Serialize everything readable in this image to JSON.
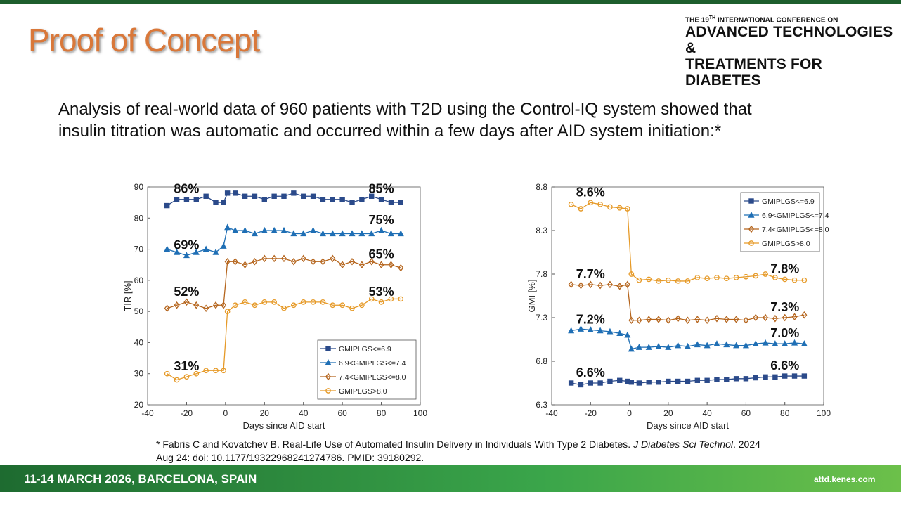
{
  "slide": {
    "title": "Proof of Concept",
    "conference": {
      "pre": "THE 19",
      "sup": "TH",
      "post": " INTERNATIONAL CONFERENCE ON",
      "line2": "ADVANCED TECHNOLOGIES &",
      "line3": "TREATMENTS FOR DIABETES"
    },
    "body": "Analysis of real-world data of 960 patients with T2D using the Control-IQ system showed that insulin titration was automatic and occurred within a few days after AID system initiation:*",
    "footnote": {
      "before": "* Fabris C and Kovatchev B. Real-Life Use of Automated Insulin Delivery in Individuals With Type 2 Diabetes. ",
      "journal": "J Diabetes Sci Technol",
      "after": ". 2024 Aug 24: doi: 10.1177/19322968241274786. PMID: 39180292."
    },
    "footer": {
      "dates": "11-14 MARCH 2026, BARCELONA, SPAIN",
      "website": "attd.kenes.com"
    }
  },
  "chart_data": [
    {
      "type": "line",
      "xlabel": "Days since AID start",
      "ylabel": "TIR [%]",
      "x": [
        -30,
        -25,
        -20,
        -15,
        -10,
        -5,
        -1,
        1,
        5,
        10,
        15,
        20,
        25,
        30,
        35,
        40,
        45,
        50,
        55,
        60,
        65,
        70,
        75,
        80,
        85,
        90
      ],
      "xlim": [
        -40,
        100
      ],
      "xticks": [
        -40,
        -20,
        0,
        20,
        40,
        60,
        80,
        100
      ],
      "ylim": [
        20,
        90
      ],
      "yticks": [
        20,
        30,
        40,
        50,
        60,
        70,
        80,
        90
      ],
      "legend": "lower right",
      "series": [
        {
          "name": "GMIPLGS<=6.9",
          "color": "#2b4a8a",
          "marker": "square",
          "labels": [
            "86%",
            "85%"
          ],
          "values": [
            84,
            86,
            86,
            86,
            87,
            85,
            85,
            88,
            88,
            87,
            87,
            86,
            87,
            87,
            88,
            87,
            87,
            86,
            86,
            86,
            85,
            86,
            87,
            86,
            85,
            85
          ]
        },
        {
          "name": "6.9<GMIPLGS<=7.4",
          "color": "#1f6fb5",
          "marker": "triangle",
          "labels": [
            "69%",
            "75%"
          ],
          "values": [
            70,
            69,
            68,
            69,
            70,
            69,
            71,
            77,
            76,
            76,
            75,
            76,
            76,
            76,
            75,
            75,
            76,
            75,
            75,
            75,
            75,
            75,
            75,
            76,
            75,
            75
          ]
        },
        {
          "name": "7.4<GMIPLGS<=8.0",
          "color": "#b5651d",
          "marker": "diamond",
          "labels": [
            "52%",
            "65%"
          ],
          "values": [
            51,
            52,
            53,
            52,
            51,
            52,
            52,
            66,
            66,
            65,
            66,
            67,
            67,
            67,
            66,
            67,
            66,
            66,
            67,
            65,
            66,
            65,
            66,
            65,
            65,
            64
          ]
        },
        {
          "name": "GMIPLGS>8.0",
          "color": "#e69a28",
          "marker": "circle",
          "labels": [
            "31%",
            "53%"
          ],
          "values": [
            30,
            28,
            29,
            30,
            31,
            31,
            31,
            50,
            52,
            53,
            52,
            53,
            53,
            51,
            52,
            53,
            53,
            53,
            52,
            52,
            51,
            52,
            54,
            53,
            54,
            54
          ]
        }
      ]
    },
    {
      "type": "line",
      "xlabel": "Days since AID start",
      "ylabel": "GMI [%]",
      "x": [
        -30,
        -25,
        -20,
        -15,
        -10,
        -5,
        -1,
        1,
        5,
        10,
        15,
        20,
        25,
        30,
        35,
        40,
        45,
        50,
        55,
        60,
        65,
        70,
        75,
        80,
        85,
        90
      ],
      "xlim": [
        -40,
        100
      ],
      "xticks": [
        -40,
        -20,
        0,
        20,
        40,
        60,
        80,
        100
      ],
      "ylim": [
        6.3,
        8.8
      ],
      "yticks": [
        6.3,
        6.8,
        7.3,
        7.8,
        8.3,
        8.8
      ],
      "legend": "upper right",
      "series": [
        {
          "name": "GMIPLGS<=6.9",
          "color": "#2b4a8a",
          "marker": "square",
          "labels": [
            "6.6%",
            "6.6%"
          ],
          "values": [
            6.55,
            6.53,
            6.55,
            6.55,
            6.57,
            6.58,
            6.57,
            6.56,
            6.55,
            6.56,
            6.56,
            6.57,
            6.57,
            6.57,
            6.58,
            6.58,
            6.59,
            6.59,
            6.6,
            6.6,
            6.61,
            6.62,
            6.62,
            6.63,
            6.63,
            6.63
          ]
        },
        {
          "name": "6.9<GMIPLGS<=7.4",
          "color": "#1f6fb5",
          "marker": "triangle",
          "labels": [
            "7.2%",
            "7.0%"
          ],
          "values": [
            7.15,
            7.17,
            7.16,
            7.15,
            7.14,
            7.12,
            7.1,
            6.94,
            6.96,
            6.96,
            6.97,
            6.96,
            6.98,
            6.97,
            6.99,
            6.98,
            7.0,
            6.99,
            6.98,
            6.98,
            7.0,
            7.01,
            7.0,
            7.0,
            7.01,
            7.0
          ]
        },
        {
          "name": "7.4<GMIPLGS<=8.0",
          "color": "#b5651d",
          "marker": "diamond",
          "labels": [
            "7.7%",
            "7.3%"
          ],
          "values": [
            7.68,
            7.67,
            7.68,
            7.67,
            7.68,
            7.66,
            7.68,
            7.27,
            7.27,
            7.28,
            7.28,
            7.27,
            7.29,
            7.27,
            7.28,
            7.27,
            7.29,
            7.28,
            7.28,
            7.27,
            7.3,
            7.3,
            7.29,
            7.3,
            7.31,
            7.33
          ]
        },
        {
          "name": "GMIPLGS>8.0",
          "color": "#e69a28",
          "marker": "circle",
          "labels": [
            "8.6%",
            "7.8%"
          ],
          "values": [
            8.6,
            8.55,
            8.62,
            8.6,
            8.57,
            8.56,
            8.55,
            7.8,
            7.73,
            7.74,
            7.72,
            7.73,
            7.72,
            7.72,
            7.76,
            7.75,
            7.76,
            7.75,
            7.76,
            7.77,
            7.78,
            7.8,
            7.76,
            7.74,
            7.73,
            7.73
          ]
        }
      ]
    }
  ]
}
